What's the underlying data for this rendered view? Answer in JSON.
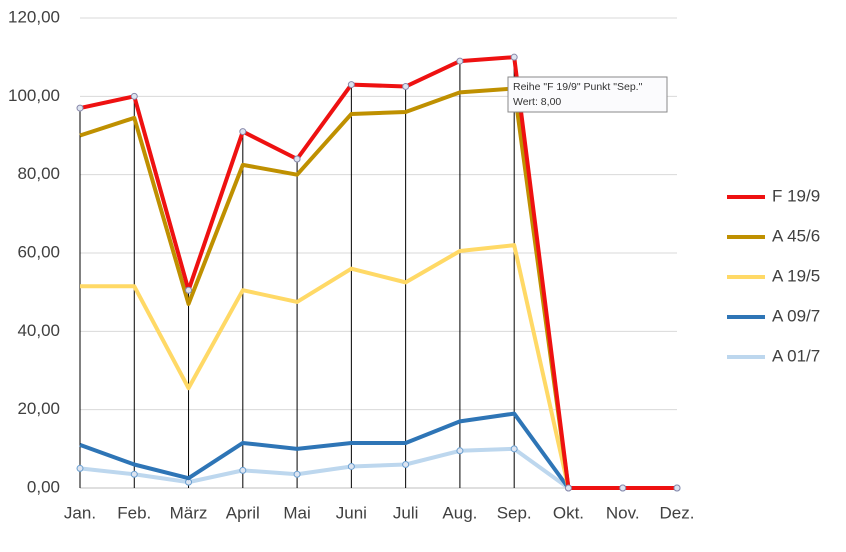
{
  "chart_data": {
    "type": "line",
    "stacked": true,
    "categories": [
      "Jan.",
      "Feb.",
      "März",
      "April",
      "Mai",
      "Juni",
      "Juli",
      "Aug.",
      "Sep.",
      "Okt.",
      "Nov.",
      "Dez."
    ],
    "series": [
      {
        "name": "F 19/9",
        "color": "#ee1111",
        "values": [
          7,
          5.5,
          3.5,
          8.5,
          4,
          7.5,
          6.5,
          8,
          8,
          0,
          0,
          0
        ]
      },
      {
        "name": "A 45/6",
        "color": "#bf9000",
        "values": [
          38.5,
          43,
          21.5,
          32,
          32.5,
          39.5,
          43.5,
          40.5,
          40,
          0,
          0,
          0
        ]
      },
      {
        "name": "A 19/5",
        "color": "#ffd966",
        "values": [
          40.5,
          45.5,
          23,
          39,
          37.5,
          44.5,
          41,
          43.5,
          43,
          0,
          0,
          0
        ]
      },
      {
        "name": "A 09/7",
        "color": "#2e75b6",
        "values": [
          6,
          2.5,
          1,
          7,
          6.5,
          6,
          5.5,
          7.5,
          9,
          0,
          0,
          0
        ]
      },
      {
        "name": "A 01/7",
        "color": "#bdd7ee",
        "values": [
          5,
          3.5,
          1.5,
          4.5,
          3.5,
          5.5,
          6,
          9.5,
          10,
          0,
          0,
          0
        ]
      }
    ],
    "ylim": [
      0,
      120
    ],
    "yticks": [
      {
        "value": 0,
        "label": "0,00"
      },
      {
        "value": 20,
        "label": "20,00"
      },
      {
        "value": 40,
        "label": "40,00"
      },
      {
        "value": 60,
        "label": "60,00"
      },
      {
        "value": 80,
        "label": "80,00"
      },
      {
        "value": 100,
        "label": "100,00"
      },
      {
        "value": 120,
        "label": "120,00"
      }
    ],
    "grid": true,
    "drop_lines": true,
    "legend": "right",
    "tooltip": {
      "line1": "Reihe \"F 19/9\" Punkt \"Sep.\"",
      "line2": "Wert: 8,00"
    }
  }
}
